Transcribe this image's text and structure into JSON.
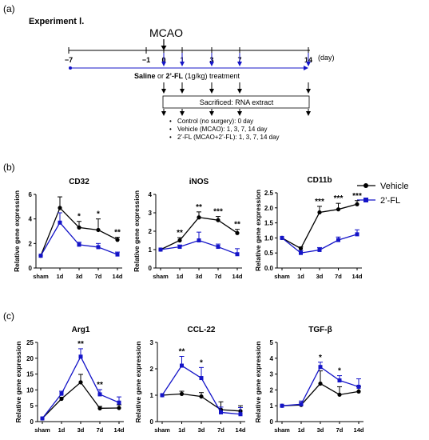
{
  "panel_labels": {
    "a": "(a)",
    "b": "(b)",
    "c": "(c)"
  },
  "timeline": {
    "experiment": "Experiment Ⅰ.",
    "event": "MCAO",
    "days": [
      "−7",
      "−1",
      "0",
      "1",
      "3",
      "7",
      "14"
    ],
    "day_unit": "(day)",
    "treatment_prefix": "Saline",
    "treatment_or": " or ",
    "treatment_drug": "2’-FL",
    "treatment_suffix": " (1g/kg) treatment",
    "sacrifice": "Sacrificed: RNA extract",
    "groups": [
      "Control (no surgery): 0 day",
      "Vehicle (MCAO): 1, 3, 7, 14 day",
      "2’-FL (MCAO+2’-FL): 1, 3, 7, 14 day"
    ]
  },
  "legend": {
    "placement": "right of panel (b)",
    "items": [
      {
        "name": "Vehicle",
        "color": "#000000",
        "marker": "circle"
      },
      {
        "name": "2’-FL",
        "color": "#1414c8",
        "marker": "square"
      }
    ]
  },
  "colors": {
    "vehicle": "#000000",
    "fl": "#1414c8"
  },
  "chart_data": [
    {
      "type": "line",
      "title": "CD32",
      "ylabel": "Relative gene expression",
      "categories": [
        "sham",
        "1d",
        "3d",
        "7d",
        "14d"
      ],
      "ylim": [
        0,
        6
      ],
      "yticks": [
        "0",
        "2",
        "4",
        "6"
      ],
      "series": [
        {
          "name": "Vehicle",
          "values": [
            1.0,
            4.9,
            3.3,
            3.1,
            2.3
          ],
          "errors": [
            0,
            0.9,
            0.5,
            0.9,
            0.2
          ]
        },
        {
          "name": "2’-FL",
          "values": [
            1.0,
            3.7,
            1.9,
            1.7,
            1.1
          ],
          "errors": [
            0,
            0.8,
            0.2,
            0.3,
            0.2
          ]
        }
      ],
      "annotations": [
        "",
        "",
        "*",
        "*",
        "**"
      ]
    },
    {
      "type": "line",
      "title": "iNOS",
      "ylabel": "Relative gene expression",
      "categories": [
        "sham",
        "1d",
        "3d",
        "7d",
        "14d"
      ],
      "ylim": [
        0,
        4
      ],
      "yticks": [
        "0",
        "1",
        "2",
        "3",
        "4"
      ],
      "series": [
        {
          "name": "Vehicle",
          "values": [
            1.0,
            1.5,
            2.75,
            2.6,
            1.9
          ],
          "errors": [
            0,
            0.15,
            0.3,
            0.2,
            0.2
          ]
        },
        {
          "name": "2’-FL",
          "values": [
            1.0,
            1.15,
            1.5,
            1.15,
            0.75
          ],
          "errors": [
            0,
            0.1,
            0.45,
            0.15,
            0.3
          ]
        }
      ],
      "annotations": [
        "",
        "**",
        "**",
        "***",
        "**"
      ]
    },
    {
      "type": "line",
      "title": "CD11b",
      "ylabel": "Relative gene expression",
      "categories": [
        "sham",
        "1d",
        "3d",
        "7d",
        "14d"
      ],
      "ylim": [
        0,
        2.5
      ],
      "yticks": [
        "0.0",
        "0.5",
        "1.0",
        "1.5",
        "2.0",
        "2.5"
      ],
      "series": [
        {
          "name": "Vehicle",
          "values": [
            1.0,
            0.65,
            1.85,
            1.95,
            2.12
          ],
          "errors": [
            0,
            0.05,
            0.2,
            0.2,
            0.12
          ]
        },
        {
          "name": "2’-FL",
          "values": [
            1.0,
            0.5,
            0.6,
            0.93,
            1.12
          ],
          "errors": [
            0,
            0.08,
            0.08,
            0.1,
            0.15
          ]
        }
      ],
      "annotations": [
        "",
        "",
        "***",
        "***",
        "***"
      ]
    },
    {
      "type": "line",
      "title": "Arg1",
      "ylabel": "Relative gene expression",
      "categories": [
        "sham",
        "1d",
        "3d",
        "7d",
        "14d"
      ],
      "ylim": [
        0,
        25
      ],
      "yticks": [
        "0",
        "5",
        "10",
        "15",
        "20",
        "25"
      ],
      "series": [
        {
          "name": "Vehicle",
          "values": [
            1.0,
            7.2,
            12.4,
            4.2,
            4.3
          ],
          "errors": [
            0,
            0.5,
            2.5,
            0.6,
            1.0
          ]
        },
        {
          "name": "2’-FL",
          "values": [
            1.0,
            8.8,
            20.5,
            8.6,
            6.0
          ],
          "errors": [
            0,
            0.8,
            2.5,
            1.5,
            1.8
          ]
        }
      ],
      "annotations": [
        "",
        "",
        "**",
        "**",
        ""
      ]
    },
    {
      "type": "line",
      "title": "CCL-22",
      "ylabel": "Relative gene expression",
      "categories": [
        "sham",
        "1d",
        "3d",
        "7d",
        "14d"
      ],
      "ylim": [
        0,
        3
      ],
      "yticks": [
        "0",
        "1",
        "2",
        "3"
      ],
      "series": [
        {
          "name": "Vehicle",
          "values": [
            1.0,
            1.05,
            0.95,
            0.45,
            0.4
          ],
          "errors": [
            0,
            0.1,
            0.15,
            0.3,
            0.2
          ]
        },
        {
          "name": "2’-FL",
          "values": [
            1.0,
            2.12,
            1.65,
            0.35,
            0.28
          ],
          "errors": [
            0,
            0.35,
            0.4,
            0.2,
            0.25
          ]
        }
      ],
      "annotations": [
        "",
        "**",
        "*",
        "",
        ""
      ]
    },
    {
      "type": "line",
      "title": "TGF-β",
      "ylabel": "Relative gene expression",
      "categories": [
        "sham",
        "1d",
        "3d",
        "7d",
        "14d"
      ],
      "ylim": [
        0,
        5
      ],
      "yticks": [
        "0",
        "1",
        "2",
        "3",
        "4",
        "5"
      ],
      "series": [
        {
          "name": "Vehicle",
          "values": [
            1.0,
            1.05,
            2.4,
            1.7,
            1.9
          ],
          "errors": [
            0,
            0.15,
            0.8,
            0.5,
            0.3
          ]
        },
        {
          "name": "2’-FL",
          "values": [
            1.0,
            1.1,
            3.45,
            2.6,
            2.2
          ],
          "errors": [
            0,
            0.2,
            0.3,
            0.3,
            0.5
          ]
        }
      ],
      "annotations": [
        "",
        "",
        "*",
        "*",
        ""
      ]
    }
  ]
}
